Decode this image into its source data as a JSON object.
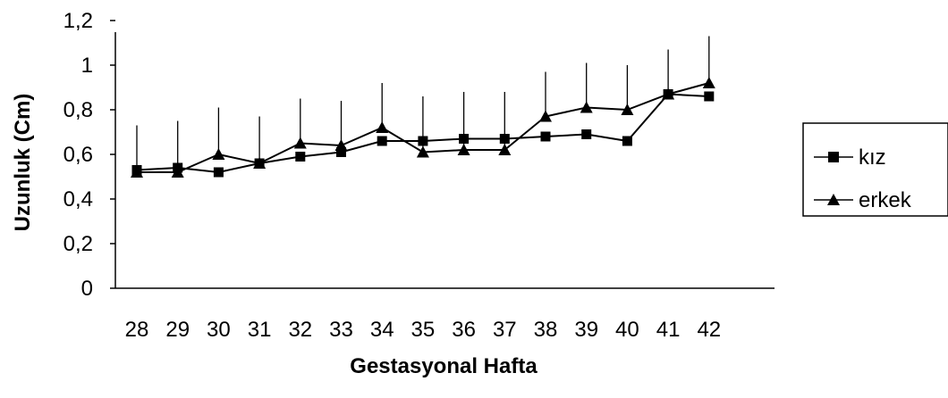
{
  "chart_data": {
    "type": "line",
    "title": "",
    "xlabel": "Gestasyonal Hafta",
    "ylabel": "Uzunluk (Cm)",
    "categories": [
      "28",
      "29",
      "30",
      "31",
      "32",
      "33",
      "34",
      "35",
      "36",
      "37",
      "38",
      "39",
      "40",
      "41",
      "42"
    ],
    "ylim": [
      0,
      1.2
    ],
    "yticks": [
      "0",
      "0,2",
      "0,4",
      "0,6",
      "0,8",
      "1",
      "1,2"
    ],
    "grid": false,
    "legend_position": "right",
    "series": [
      {
        "name": "kız",
        "marker": "square",
        "values": [
          0.53,
          0.54,
          0.52,
          0.56,
          0.59,
          0.61,
          0.66,
          0.66,
          0.67,
          0.67,
          0.68,
          0.69,
          0.66,
          0.87,
          0.86
        ]
      },
      {
        "name": "erkek",
        "marker": "triangle",
        "values": [
          0.52,
          0.52,
          0.6,
          0.56,
          0.65,
          0.64,
          0.72,
          0.61,
          0.62,
          0.62,
          0.77,
          0.81,
          0.8,
          0.87,
          0.92
        ],
        "error_upper": [
          0.73,
          0.75,
          0.81,
          0.77,
          0.85,
          0.84,
          0.92,
          0.86,
          0.88,
          0.88,
          0.97,
          1.01,
          1.0,
          1.07,
          1.13
        ]
      }
    ]
  }
}
